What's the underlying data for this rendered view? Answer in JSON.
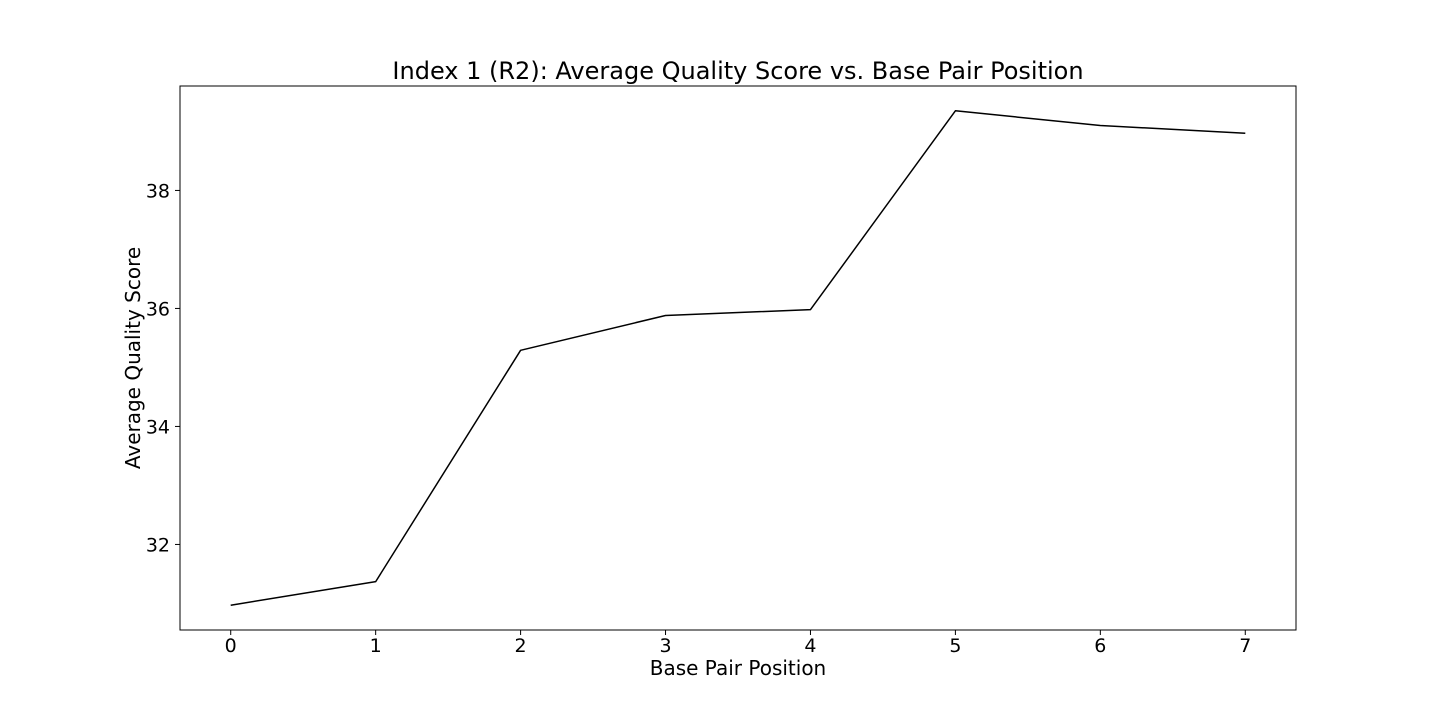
{
  "chart_data": {
    "type": "line",
    "title": "Index 1 (R2): Average Quality Score vs. Base Pair Position",
    "xlabel": "Base Pair Position",
    "ylabel": "Average Quality Score",
    "x": [
      0,
      1,
      2,
      3,
      4,
      5,
      6,
      7
    ],
    "series": [
      {
        "values": [
          30.97,
          31.37,
          35.29,
          35.88,
          35.98,
          39.35,
          39.1,
          38.97
        ],
        "color": "#000000"
      }
    ],
    "xticks": [
      "0",
      "1",
      "2",
      "3",
      "4",
      "5",
      "6",
      "7"
    ],
    "yticks": [
      "32",
      "34",
      "36",
      "38"
    ],
    "xlim": [
      -0.35,
      7.35
    ],
    "ylim": [
      30.55,
      39.77
    ],
    "grid": false,
    "legend": false
  }
}
